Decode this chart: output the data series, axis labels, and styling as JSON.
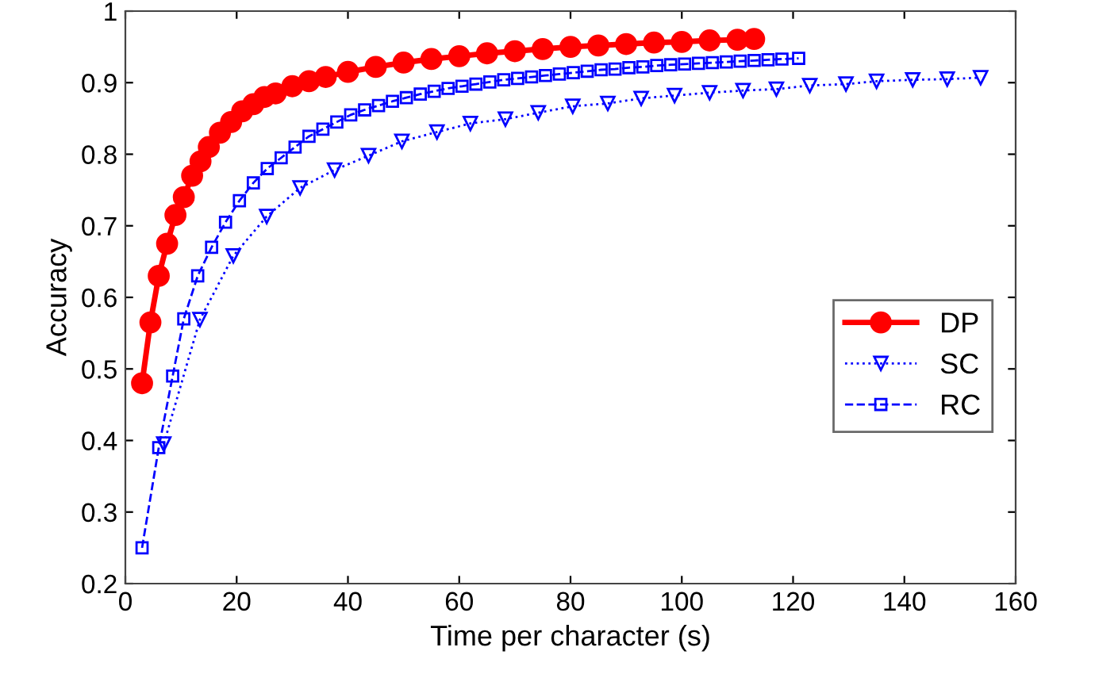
{
  "chart_data": {
    "type": "line",
    "xlabel": "Time per character (s)",
    "ylabel": "Accuracy",
    "xlim": [
      0,
      160
    ],
    "xticks": [
      0,
      20,
      40,
      60,
      80,
      100,
      120,
      140,
      160
    ],
    "ylim": [
      0.2,
      1
    ],
    "yticks": [
      {
        "value": 0.2,
        "label": "0.2"
      },
      {
        "value": 0.3,
        "label": "0.3"
      },
      {
        "value": 0.4,
        "label": "0.4"
      },
      {
        "value": 0.5,
        "label": "0.5"
      },
      {
        "value": 0.6,
        "label": "0.6"
      },
      {
        "value": 0.7,
        "label": "0.7"
      },
      {
        "value": 0.8,
        "label": "0.8"
      },
      {
        "value": 0.9,
        "label": "0.9"
      },
      {
        "value": 1,
        "label": "1"
      }
    ],
    "grid": false,
    "legend": "right",
    "series": [
      {
        "name": "DP",
        "color": "#ff0000",
        "marker": "circle",
        "line_style": "solid",
        "x": [
          3,
          4.5,
          6,
          7.5,
          9,
          10.5,
          12,
          13.5,
          15,
          17,
          19,
          21,
          23,
          25,
          27,
          30,
          33,
          36,
          40,
          45,
          50,
          55,
          60,
          65,
          70,
          75,
          80,
          85,
          90,
          95,
          100,
          105,
          110,
          113
        ],
        "values": [
          0.48,
          0.565,
          0.63,
          0.675,
          0.715,
          0.74,
          0.77,
          0.79,
          0.81,
          0.83,
          0.845,
          0.86,
          0.87,
          0.88,
          0.885,
          0.895,
          0.902,
          0.908,
          0.915,
          0.922,
          0.928,
          0.933,
          0.937,
          0.941,
          0.944,
          0.947,
          0.95,
          0.952,
          0.954,
          0.956,
          0.957,
          0.959,
          0.96,
          0.961
        ]
      },
      {
        "name": "SC",
        "color": "#0000ff",
        "marker": "triangle",
        "line_style": "dotted",
        "x": [
          6.9,
          13.4,
          19.4,
          25.4,
          31.4,
          37.6,
          43.7,
          49.7,
          56,
          62,
          68.3,
          74.2,
          80.4,
          86.7,
          92.7,
          98.7,
          105,
          111,
          117,
          123,
          129.5,
          135,
          141.5,
          147.7,
          153.7
        ],
        "values": [
          0.395,
          0.569,
          0.658,
          0.713,
          0.753,
          0.778,
          0.798,
          0.818,
          0.831,
          0.843,
          0.849,
          0.858,
          0.867,
          0.871,
          0.878,
          0.882,
          0.886,
          0.889,
          0.891,
          0.896,
          0.898,
          0.902,
          0.904,
          0.905,
          0.907
        ]
      },
      {
        "name": "RC",
        "color": "#0000ff",
        "marker": "square",
        "line_style": "dashed",
        "x": [
          3,
          6,
          8.5,
          10.5,
          13,
          15.5,
          18,
          20.5,
          23,
          25.5,
          28,
          30.5,
          33,
          35.5,
          38,
          40.5,
          43,
          45.5,
          48,
          50.5,
          53,
          55.5,
          58,
          60.5,
          63,
          65.5,
          68,
          70.5,
          73,
          75.5,
          78,
          80.5,
          83,
          85.5,
          88,
          90.5,
          93,
          95.5,
          98,
          100.5,
          103,
          105.5,
          108,
          110.5,
          113,
          115.5,
          118,
          121
        ],
        "values": [
          0.25,
          0.39,
          0.49,
          0.57,
          0.63,
          0.67,
          0.705,
          0.735,
          0.76,
          0.78,
          0.795,
          0.81,
          0.825,
          0.835,
          0.845,
          0.855,
          0.862,
          0.868,
          0.874,
          0.879,
          0.884,
          0.888,
          0.892,
          0.895,
          0.898,
          0.901,
          0.904,
          0.906,
          0.908,
          0.91,
          0.912,
          0.914,
          0.916,
          0.918,
          0.919,
          0.921,
          0.922,
          0.924,
          0.925,
          0.926,
          0.927,
          0.928,
          0.929,
          0.93,
          0.931,
          0.932,
          0.933,
          0.934
        ]
      }
    ]
  }
}
